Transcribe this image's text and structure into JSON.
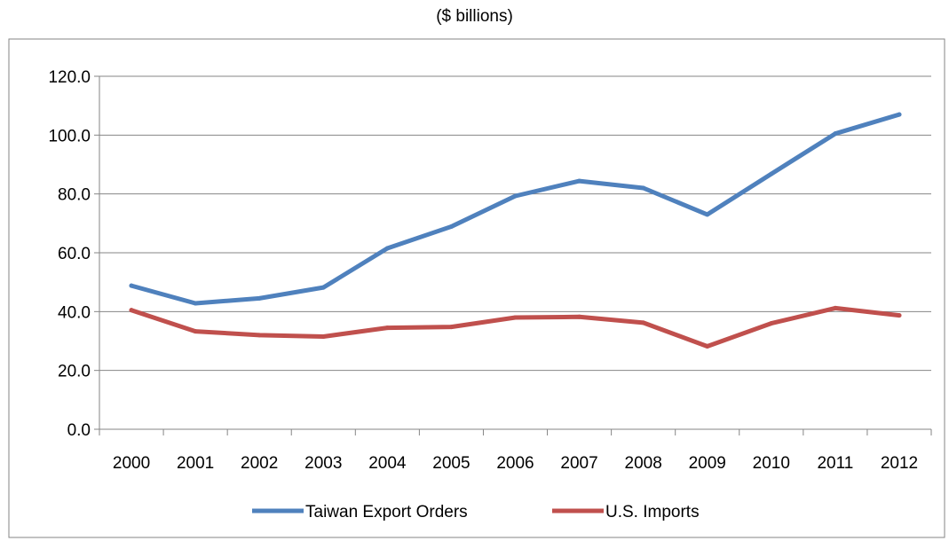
{
  "chart_data": {
    "type": "line",
    "title": "",
    "subtitle": "($ billions)",
    "xlabel": "",
    "ylabel": "",
    "categories": [
      "2000",
      "2001",
      "2002",
      "2003",
      "2004",
      "2005",
      "2006",
      "2007",
      "2008",
      "2009",
      "2010",
      "2011",
      "2012"
    ],
    "series": [
      {
        "name": "Taiwan Export Orders",
        "color": "#4f81bd",
        "values": [
          48.8,
          42.8,
          44.5,
          48.2,
          61.5,
          68.9,
          79.3,
          84.4,
          82.0,
          73.0,
          86.8,
          100.5,
          107.0
        ]
      },
      {
        "name": "U.S. Imports",
        "color": "#c0504d",
        "values": [
          40.5,
          33.3,
          32.0,
          31.5,
          34.5,
          34.8,
          38.0,
          38.2,
          36.2,
          28.2,
          36.0,
          41.2,
          38.7
        ]
      }
    ],
    "ylim": [
      0,
      120
    ],
    "ytick_labels": [
      "0.0",
      "20.0",
      "40.0",
      "60.0",
      "80.0",
      "100.0",
      "120.0"
    ],
    "grid": true,
    "legend": "bottom"
  }
}
